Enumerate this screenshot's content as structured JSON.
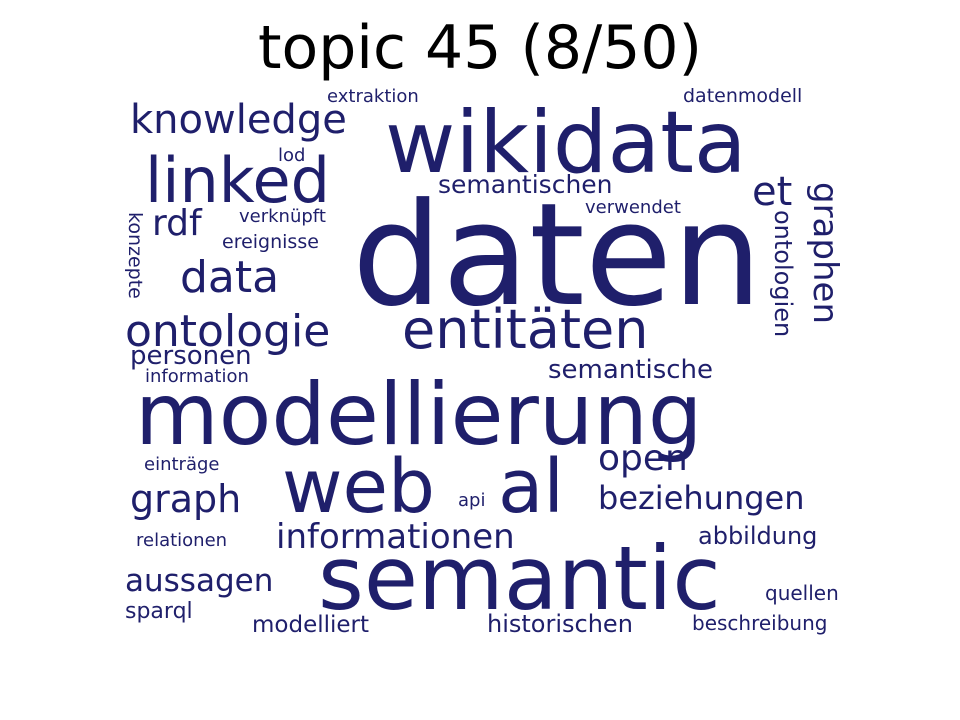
{
  "title": "topic 45 (8/50)",
  "word_color": "#1f1f6b",
  "words": [
    {
      "text": "daten"
    },
    {
      "text": "wikidata"
    },
    {
      "text": "modellierung"
    },
    {
      "text": "semantic"
    },
    {
      "text": "web"
    },
    {
      "text": "al"
    },
    {
      "text": "linked"
    },
    {
      "text": "entitäten"
    },
    {
      "text": "ontologie"
    },
    {
      "text": "knowledge"
    },
    {
      "text": "data"
    },
    {
      "text": "et"
    },
    {
      "text": "rdf"
    },
    {
      "text": "graphen"
    },
    {
      "text": "graph"
    },
    {
      "text": "open"
    },
    {
      "text": "beziehungen"
    },
    {
      "text": "informationen"
    },
    {
      "text": "aussagen"
    },
    {
      "text": "semantischen"
    },
    {
      "text": "personen"
    },
    {
      "text": "semantische"
    },
    {
      "text": "ontologien"
    },
    {
      "text": "abbildung"
    },
    {
      "text": "historischen"
    },
    {
      "text": "modelliert"
    },
    {
      "text": "sparql"
    },
    {
      "text": "quellen"
    },
    {
      "text": "beschreibung"
    },
    {
      "text": "relationen"
    },
    {
      "text": "einträge"
    },
    {
      "text": "information"
    },
    {
      "text": "konzepte"
    },
    {
      "text": "verknüpft"
    },
    {
      "text": "ereignisse"
    },
    {
      "text": "lod"
    },
    {
      "text": "extraktion"
    },
    {
      "text": "datenmodell"
    },
    {
      "text": "verwendet"
    },
    {
      "text": "api"
    }
  ]
}
